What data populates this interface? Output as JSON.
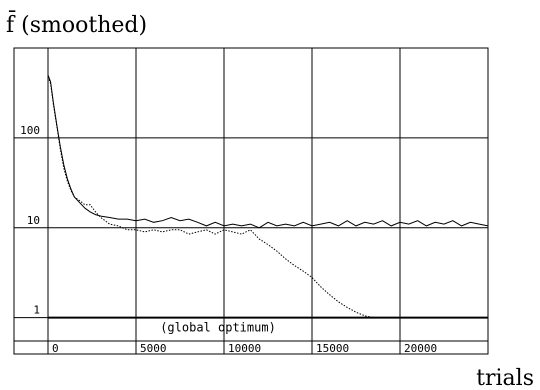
{
  "chart_data": {
    "type": "line",
    "y_axis_title": "f̄ (smoothed)",
    "x_axis_title": "trials",
    "y_scale": "log",
    "grid": true,
    "xlim": [
      0,
      25000
    ],
    "ylim": [
      0.55,
      1000
    ],
    "x_ticks": [
      {
        "value": 0,
        "label": "0"
      },
      {
        "value": 5000,
        "label": "5000"
      },
      {
        "value": 10000,
        "label": "10000"
      },
      {
        "value": 15000,
        "label": "15000"
      },
      {
        "value": 20000,
        "label": "20000"
      }
    ],
    "y_ticks": [
      {
        "value": 100,
        "label": "100"
      },
      {
        "value": 10,
        "label": "10"
      },
      {
        "value": 1,
        "label": "1"
      }
    ],
    "annotation": {
      "text": "(global optimum)",
      "y": 1
    },
    "series": [
      {
        "style": "solid",
        "x": [
          0,
          150,
          300,
          500,
          700,
          900,
          1100,
          1300,
          1500,
          1800,
          2100,
          2400,
          2700,
          3000,
          3500,
          4000,
          4500,
          5000,
          5500,
          6000,
          6500,
          7000,
          7500,
          8000,
          8500,
          9000,
          9500,
          10000,
          10500,
          11000,
          11500,
          12000,
          12500,
          13000,
          13500,
          14000,
          14500,
          15000,
          15500,
          16000,
          16500,
          17000,
          17500,
          18000,
          18500,
          19000,
          19500,
          20000,
          20500,
          21000,
          21500,
          22000,
          22500,
          23000,
          23500,
          24000,
          24500,
          25000
        ],
        "y": [
          500,
          420,
          250,
          140,
          80,
          50,
          35,
          27,
          22,
          19,
          16.5,
          15,
          14,
          13.5,
          13,
          12.5,
          12.5,
          12,
          12.5,
          11.5,
          12,
          13,
          12,
          12.5,
          11.5,
          10.5,
          11.5,
          10.5,
          11,
          10.5,
          11,
          10,
          11.5,
          10.5,
          11,
          10.5,
          11.5,
          10.5,
          11,
          11.5,
          10.5,
          12,
          10.5,
          11.5,
          11,
          12,
          10.5,
          11.5,
          11,
          12,
          10.5,
          11.5,
          11,
          12,
          10.5,
          11.5,
          11,
          10.5
        ]
      },
      {
        "style": "dotted",
        "x": [
          0,
          150,
          300,
          500,
          700,
          900,
          1100,
          1300,
          1500,
          1800,
          2100,
          2400,
          2700,
          3000,
          3500,
          4000,
          4500,
          5000,
          5500,
          6000,
          6500,
          7000,
          7500,
          8000,
          8500,
          9000,
          9500,
          10000,
          10500,
          11000,
          11500,
          12000,
          12500,
          13000,
          13500,
          14000,
          14500,
          15000,
          15500,
          16000,
          16500,
          17000,
          17500,
          18000,
          18500,
          19000
        ],
        "y": [
          480,
          400,
          240,
          135,
          75,
          46,
          33,
          26,
          22,
          20,
          18,
          18,
          15,
          13,
          11,
          10.5,
          9.5,
          9.5,
          9,
          9.5,
          9,
          9.5,
          9.5,
          8.5,
          9,
          9.5,
          8.5,
          9.5,
          9,
          8.5,
          9.5,
          7.5,
          6.5,
          5.5,
          4.5,
          3.8,
          3.3,
          2.8,
          2.2,
          1.8,
          1.5,
          1.3,
          1.15,
          1.05,
          1.0,
          1.0
        ]
      }
    ]
  }
}
